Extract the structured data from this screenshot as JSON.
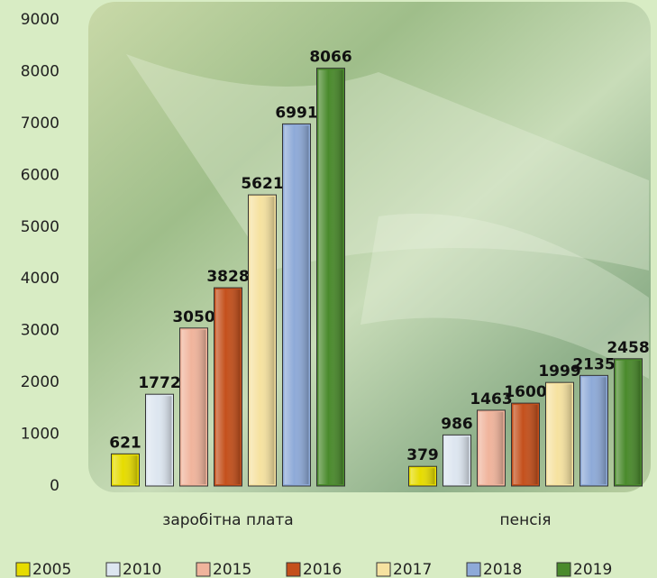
{
  "chart_data": {
    "type": "bar",
    "categories": [
      "заробітна плата",
      "пенсія"
    ],
    "series": [
      {
        "name": "2005",
        "color": "#e6dc00",
        "values": [
          621,
          379
        ]
      },
      {
        "name": "2010",
        "color": "#dde6f0",
        "values": [
          1772,
          986
        ]
      },
      {
        "name": "2015",
        "color": "#f0b49c",
        "values": [
          3050,
          1463
        ]
      },
      {
        "name": "2016",
        "color": "#c4501c",
        "values": [
          3828,
          1600
        ]
      },
      {
        "name": "2017",
        "color": "#f6e2a0",
        "values": [
          5621,
          1999
        ]
      },
      {
        "name": "2018",
        "color": "#8eaad8",
        "values": [
          6991,
          2135
        ]
      },
      {
        "name": "2019",
        "color": "#4a8a2c",
        "values": [
          8066,
          2458
        ]
      }
    ],
    "ylim": [
      0,
      9000
    ],
    "yticks": [
      0,
      1000,
      2000,
      3000,
      4000,
      5000,
      6000,
      7000,
      8000,
      9000
    ],
    "legend": "bottom"
  }
}
